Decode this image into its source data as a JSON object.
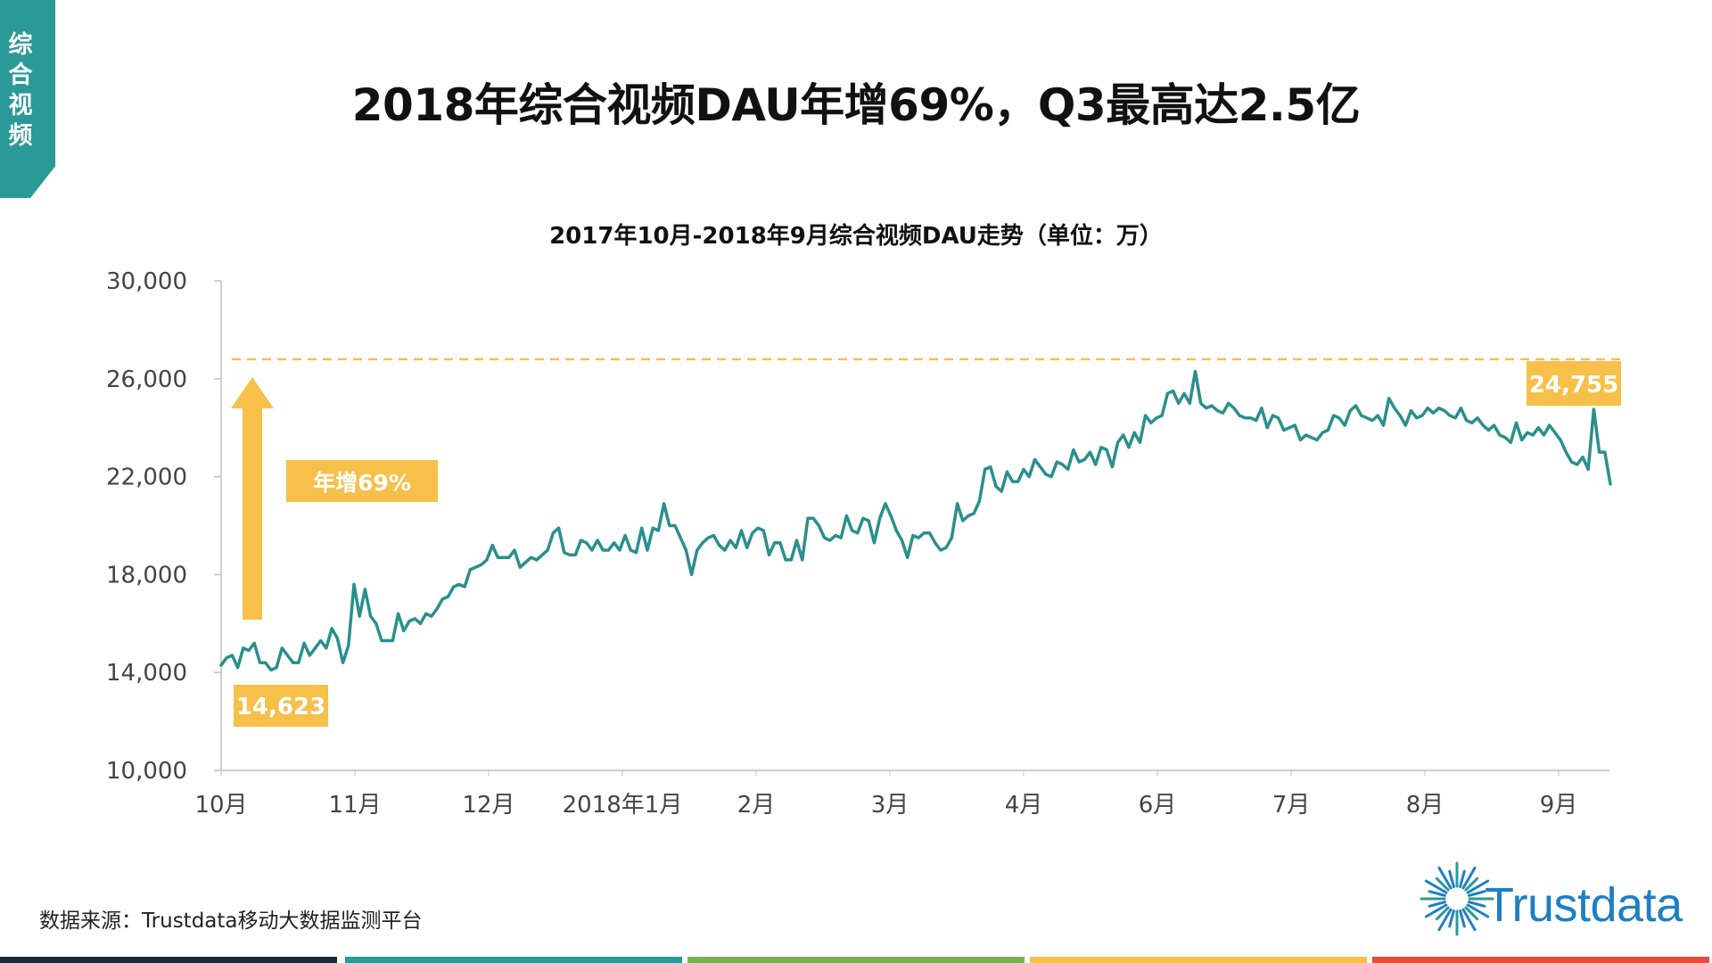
{
  "side_tab": {
    "label": "综合视频",
    "color": "#2a9a98"
  },
  "page_title": "2018年综合视频DAU年增69%，Q3最高达2.5亿",
  "source_note": "数据来源：Trustdata移动大数据监测平台",
  "logo": {
    "text": "Trustdata",
    "icon": "sunburst-icon",
    "color": "#1e7fc4"
  },
  "footer_colors": [
    "#1d2b3a",
    "#2a9a98",
    "#7ab04f",
    "#f7c04a",
    "#e94b3c"
  ],
  "chart_data": {
    "type": "line",
    "title": "2017年10月-2018年9月综合视频DAU走势（单位：万）",
    "ylim": [
      10000,
      30000
    ],
    "yticks": [
      10000,
      14000,
      18000,
      22000,
      26000,
      30000
    ],
    "ytick_labels": [
      "10,000",
      "14,000",
      "18,000",
      "22,000",
      "26,000",
      "30,000"
    ],
    "xtick_labels": [
      "10月",
      "11月",
      "12月",
      "2018年1月",
      "2月",
      "3月",
      "4月",
      "6月",
      "7月",
      "8月",
      "9月"
    ],
    "line_color": "#2a8f8d",
    "accent_color": "#f7c04a",
    "reference_line": 26800,
    "start_label": "14,623",
    "end_label": "24,755",
    "growth_label": "年增69%",
    "series": [
      {
        "values": [
          14300,
          14600,
          14700,
          14200,
          15000,
          14900,
          15200,
          14400,
          14400,
          14100,
          14200,
          15000,
          14700,
          14400,
          14400,
          15200,
          14700,
          15000,
          15300,
          15000,
          15800,
          15400,
          14400,
          15100,
          17600,
          16300,
          17400,
          16300,
          16000,
          15300,
          15300,
          15300,
          16400,
          15700,
          16100,
          16200,
          16000,
          16400,
          16300,
          16600,
          17000,
          17100,
          17500,
          17600,
          17500,
          18200,
          18300,
          18400,
          18600,
          19200,
          18700,
          18700,
          18700,
          19000,
          18300,
          18500,
          18700,
          18600,
          18800,
          19000,
          19700,
          19900,
          18900,
          18800,
          18800,
          19400,
          19300,
          19000,
          19400,
          19000,
          19000,
          19300,
          19000,
          19600,
          19000,
          18900,
          19900,
          19000,
          19900,
          19800,
          20900,
          20000,
          20000,
          19500,
          19000,
          18000,
          19000,
          19300,
          19500,
          19600,
          19200,
          19000,
          19400,
          19100,
          19800,
          19100,
          19700,
          19900,
          19800,
          18800,
          19300,
          19300,
          18600,
          18600,
          19400,
          18600,
          20300,
          20300,
          20000,
          19500,
          19400,
          19600,
          19500,
          20400,
          19800,
          19700,
          20300,
          20200,
          19300,
          20300,
          20900,
          20400,
          19800,
          19400,
          18700,
          19600,
          19500,
          19700,
          19700,
          19300,
          19000,
          19100,
          19500,
          20900,
          20200,
          20400,
          20500,
          21000,
          22300,
          22400,
          21600,
          21400,
          22200,
          21800,
          21800,
          22300,
          22000,
          22700,
          22400,
          22100,
          22000,
          22600,
          22500,
          22300,
          23100,
          22600,
          22700,
          23000,
          22500,
          23200,
          23100,
          22400,
          23400,
          23700,
          23200,
          23800,
          23400,
          24500,
          24200,
          24400,
          24500,
          25400,
          25500,
          25000,
          25400,
          25000,
          26300,
          25000,
          24800,
          24900,
          24700,
          24600,
          25000,
          24800,
          24500,
          24400,
          24400,
          24300,
          24800,
          24000,
          24500,
          24400,
          23900,
          24000,
          24100,
          23500,
          23700,
          23600,
          23500,
          23800,
          23900,
          24500,
          24400,
          24100,
          24700,
          24900,
          24500,
          24400,
          24300,
          24500,
          24100,
          25200,
          24800,
          24500,
          24100,
          24700,
          24400,
          24500,
          24800,
          24600,
          24800,
          24700,
          24500,
          24400,
          24800,
          24300,
          24200,
          24400,
          24100,
          23900,
          24100,
          23700,
          23600,
          23400,
          24200,
          23500,
          23800,
          23700,
          24000,
          23700,
          24100,
          23800,
          23500,
          23000,
          22600,
          22500,
          22800,
          22300,
          24755,
          23000,
          23000,
          21700
        ]
      }
    ]
  }
}
